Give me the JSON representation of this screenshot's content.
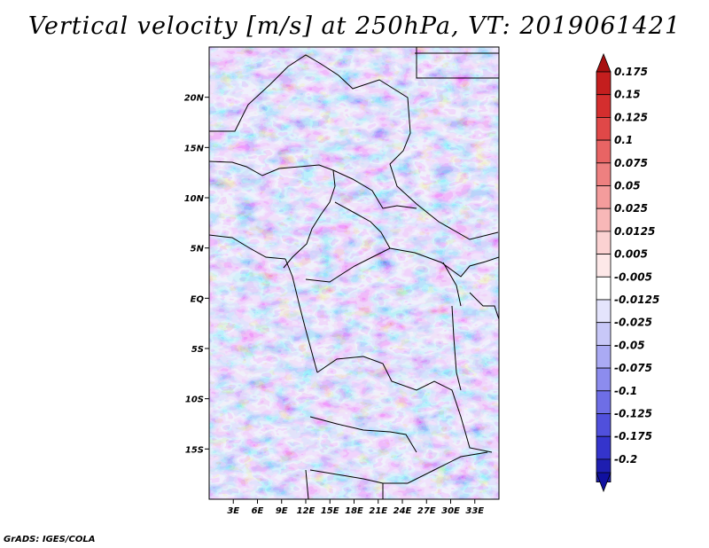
{
  "title": "Vertical velocity [m/s] at 250hPa, VT: 2019061421",
  "credit": "GrADS: IGES/COLA",
  "map": {
    "lon_range": [
      0,
      36
    ],
    "lat_range": [
      -20,
      25
    ],
    "lat_ticks": [
      {
        "lat": 20,
        "label": "20N"
      },
      {
        "lat": 15,
        "label": "15N"
      },
      {
        "lat": 10,
        "label": "10N"
      },
      {
        "lat": 5,
        "label": "5N"
      },
      {
        "lat": 0,
        "label": "EQ"
      },
      {
        "lat": -5,
        "label": "5S"
      },
      {
        "lat": -10,
        "label": "10S"
      },
      {
        "lat": -15,
        "label": "15S"
      }
    ],
    "lon_ticks": [
      {
        "lon": 3,
        "label": "3E"
      },
      {
        "lon": 6,
        "label": "6E"
      },
      {
        "lon": 9,
        "label": "9E"
      },
      {
        "lon": 12,
        "label": "12E"
      },
      {
        "lon": 15,
        "label": "15E"
      },
      {
        "lon": 18,
        "label": "18E"
      },
      {
        "lon": 21,
        "label": "21E"
      },
      {
        "lon": 24,
        "label": "24E"
      },
      {
        "lon": 27,
        "label": "27E"
      },
      {
        "lon": 30,
        "label": "30E"
      },
      {
        "lon": 33,
        "label": "33E"
      }
    ]
  },
  "colorbar": {
    "levels": [
      {
        "label": "0.175",
        "color": "#c41e1e"
      },
      {
        "label": "0.15",
        "color": "#d42e2e"
      },
      {
        "label": "0.125",
        "color": "#e04848"
      },
      {
        "label": "0.1",
        "color": "#e86464"
      },
      {
        "label": "0.075",
        "color": "#ee8080"
      },
      {
        "label": "0.05",
        "color": "#f49c9c"
      },
      {
        "label": "0.025",
        "color": "#f8b8b8"
      },
      {
        "label": "0.0125",
        "color": "#fbd2d2"
      },
      {
        "label": "0.005",
        "color": "#fde8e8"
      },
      {
        "label": "-0.005",
        "color": "#ffffff"
      },
      {
        "label": "-0.0125",
        "color": "#e4e4fc"
      },
      {
        "label": "-0.025",
        "color": "#c8c8f8"
      },
      {
        "label": "-0.05",
        "color": "#aaaaf4"
      },
      {
        "label": "-0.075",
        "color": "#8c8cee"
      },
      {
        "label": "-0.1",
        "color": "#6e6ee6"
      },
      {
        "label": "-0.125",
        "color": "#5050dc"
      },
      {
        "label": "-0.175",
        "color": "#3434cc"
      },
      {
        "label": "-0.2",
        "color": "#1e1eb0"
      }
    ],
    "top_color": "#a81010",
    "bottom_color": "#1010a0"
  }
}
